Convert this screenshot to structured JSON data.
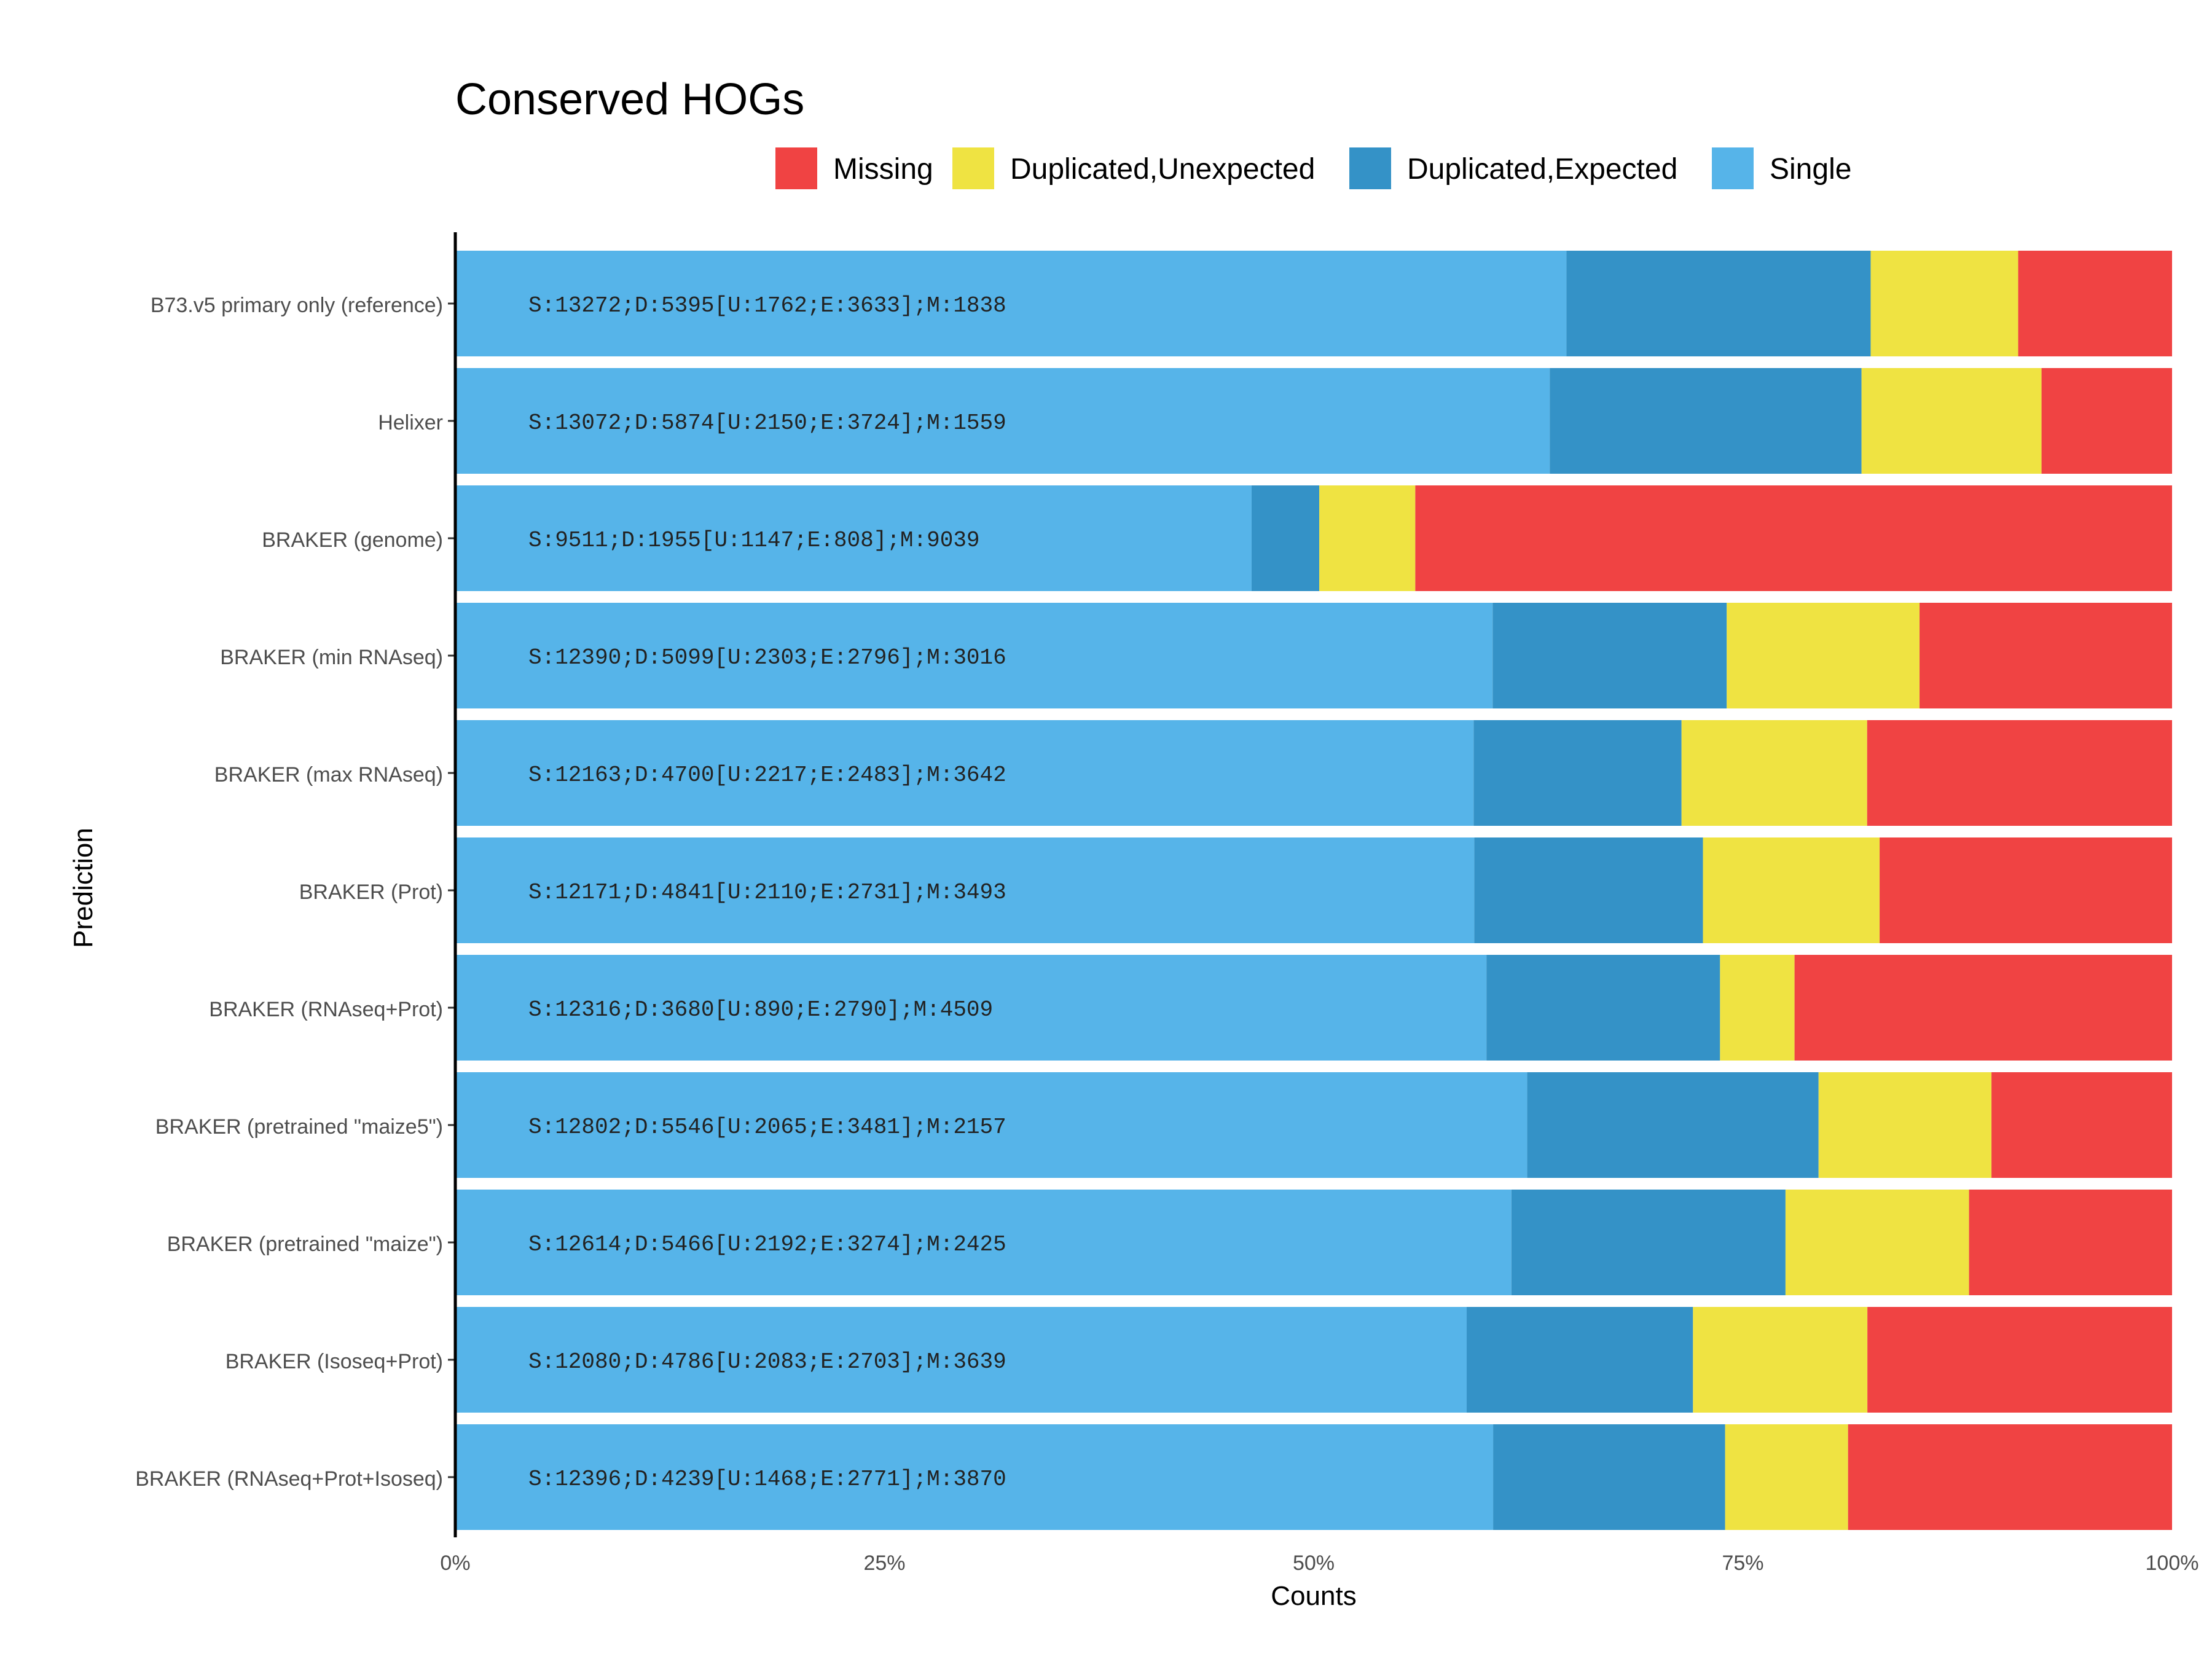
{
  "chart_data": {
    "type": "bar",
    "orientation": "horizontal",
    "stacked": "percent",
    "title": "Conserved HOGs",
    "xlabel": "Counts",
    "ylabel": "Prediction",
    "xlim": [
      0,
      100
    ],
    "xticks": [
      "0%",
      "25%",
      "50%",
      "75%",
      "100%"
    ],
    "xtick_values": [
      0,
      25,
      50,
      75,
      100
    ],
    "legend_position": "top",
    "legend": [
      {
        "name": "Missing",
        "color": "#F04343"
      },
      {
        "name": "Duplicated,Unexpected",
        "color": "#EFE342"
      },
      {
        "name": "Duplicated,Expected",
        "color": "#3492C7"
      },
      {
        "name": "Single",
        "color": "#56B4E9"
      }
    ],
    "stack_order": [
      "Single",
      "Duplicated,Expected",
      "Duplicated,Unexpected",
      "Missing"
    ],
    "categories": [
      "B73.v5 primary only (reference)",
      "Helixer",
      "BRAKER (genome)",
      "BRAKER (min RNAseq)",
      "BRAKER (max RNAseq)",
      "BRAKER (Prot)",
      "BRAKER (RNAseq+Prot)",
      "BRAKER (pretrained \"maize5\")",
      "BRAKER (pretrained \"maize\")",
      "BRAKER (Isoseq+Prot)",
      "BRAKER (RNAseq+Prot+Isoseq)"
    ],
    "series": [
      {
        "name": "Single",
        "values": [
          13272,
          13072,
          9511,
          12390,
          12163,
          12171,
          12316,
          12802,
          12614,
          12080,
          12396
        ]
      },
      {
        "name": "Duplicated,Expected",
        "values": [
          3633,
          3724,
          808,
          2796,
          2483,
          2731,
          2790,
          3481,
          3274,
          2703,
          2771
        ]
      },
      {
        "name": "Duplicated,Unexpected",
        "values": [
          1762,
          2150,
          1147,
          2303,
          2217,
          2110,
          890,
          2065,
          2192,
          2083,
          1468
        ]
      },
      {
        "name": "Missing",
        "values": [
          1838,
          1559,
          9039,
          3016,
          3642,
          3493,
          4509,
          2157,
          2425,
          3639,
          3870
        ]
      }
    ],
    "annotations": [
      "S:13272;D:5395[U:1762;E:3633];M:1838",
      "S:13072;D:5874[U:2150;E:3724];M:1559",
      "S:9511;D:1955[U:1147;E:808];M:9039",
      "S:12390;D:5099[U:2303;E:2796];M:3016",
      "S:12163;D:4700[U:2217;E:2483];M:3642",
      "S:12171;D:4841[U:2110;E:2731];M:3493",
      "S:12316;D:3680[U:890;E:2790];M:4509",
      "S:12802;D:5546[U:2065;E:3481];M:2157",
      "S:12614;D:5466[U:2192;E:3274];M:2425",
      "S:12080;D:4786[U:2083;E:2703];M:3639",
      "S:12396;D:4239[U:1468;E:2771];M:3870"
    ]
  }
}
